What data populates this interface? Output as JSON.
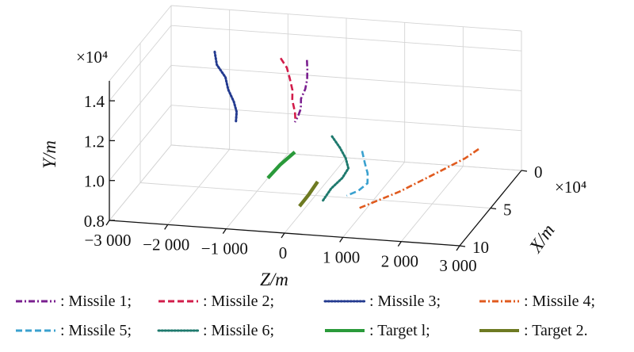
{
  "chart_data": {
    "type": "line3d",
    "axes": {
      "x": {
        "label": "X/m",
        "ticks": [
          "0",
          "5",
          "10"
        ],
        "tick_values": [
          0,
          5,
          10
        ],
        "multiplier": "×10⁴",
        "range": [
          0,
          10
        ]
      },
      "y": {
        "label": "Y/m",
        "ticks": [
          "0.8",
          "1.0",
          "1.2",
          "1.4"
        ],
        "tick_values": [
          0.8,
          1.0,
          1.2,
          1.4
        ],
        "multiplier": "×10⁴",
        "range": [
          0.8,
          1.5
        ]
      },
      "z": {
        "label": "Z/m",
        "ticks": [
          "−3 000",
          "−2 000",
          "−1 000",
          "0",
          "1 000",
          "2 000",
          "3 000"
        ],
        "tick_values": [
          -3000,
          -2000,
          -1000,
          0,
          1000,
          2000,
          3000
        ],
        "range": [
          -3000,
          3000
        ]
      }
    },
    "grid": true,
    "legend_position": "bottom",
    "series": [
      {
        "name": ": Missile 1;",
        "color": "#7a1f8f",
        "style": "dashdot",
        "points": [
          [
            2.6,
            -400,
            1.38
          ],
          [
            3.0,
            -350,
            1.35
          ],
          [
            3.5,
            -300,
            1.32
          ],
          [
            4.0,
            -280,
            1.29
          ],
          [
            4.5,
            -300,
            1.26
          ],
          [
            5.0,
            -250,
            1.23
          ],
          [
            5.3,
            -270,
            1.2
          ],
          [
            5.5,
            -300,
            1.18
          ]
        ]
      },
      {
        "name": ": Missile 2;",
        "color": "#d21c4a",
        "style": "dash",
        "points": [
          [
            2.6,
            -850,
            1.38
          ],
          [
            3.0,
            -700,
            1.35
          ],
          [
            3.5,
            -600,
            1.32
          ],
          [
            4.0,
            -500,
            1.28
          ],
          [
            4.5,
            -450,
            1.25
          ],
          [
            5.0,
            -350,
            1.21
          ],
          [
            5.4,
            -300,
            1.18
          ]
        ]
      },
      {
        "name": ": Missile 3;",
        "color": "#233a8f",
        "style": "dot",
        "points": [
          [
            2.4,
            -2000,
            1.38
          ],
          [
            3.0,
            -1900,
            1.34
          ],
          [
            3.5,
            -1700,
            1.3
          ],
          [
            4.0,
            -1600,
            1.26
          ],
          [
            4.5,
            -1450,
            1.22
          ],
          [
            5.0,
            -1350,
            1.19
          ],
          [
            5.6,
            -1300,
            1.16
          ]
        ]
      },
      {
        "name": ": Missile 4;",
        "color": "#e05a1e",
        "style": "dashdot",
        "points": [
          [
            2.2,
            2500,
            0.98
          ],
          [
            3.0,
            2350,
            0.96
          ],
          [
            4.0,
            2050,
            0.93
          ],
          [
            5.0,
            1800,
            0.91
          ],
          [
            6.0,
            1550,
            0.89
          ],
          [
            7.0,
            1300,
            0.88
          ],
          [
            8.0,
            1050,
            0.87
          ]
        ]
      },
      {
        "name": ": Missile 5;",
        "color": "#3aa1cf",
        "style": "dash",
        "points": [
          [
            5.0,
            800,
            1.04
          ],
          [
            5.5,
            900,
            1.0
          ],
          [
            6.0,
            1000,
            0.97
          ],
          [
            6.5,
            1050,
            0.94
          ],
          [
            7.0,
            950,
            0.92
          ],
          [
            7.5,
            800,
            0.91
          ]
        ]
      },
      {
        "name": ": Missile 6;",
        "color": "#1f7a6e",
        "style": "dot",
        "points": [
          [
            4.2,
            200,
            1.07
          ],
          [
            4.8,
            400,
            1.04
          ],
          [
            5.3,
            550,
            1.01
          ],
          [
            5.8,
            650,
            0.98
          ],
          [
            6.3,
            600,
            0.95
          ],
          [
            7.0,
            480,
            0.92
          ],
          [
            8.0,
            430,
            0.89
          ]
        ]
      },
      {
        "name": ": Target l;",
        "color": "#2a9a3a",
        "style": "solid",
        "points": [
          [
            5.5,
            -300,
            1.03
          ],
          [
            6.5,
            -450,
            1.0
          ],
          [
            7.5,
            -550,
            0.97
          ]
        ]
      },
      {
        "name": ": Target 2.",
        "color": "#6e7a22",
        "style": "solid",
        "points": [
          [
            7.0,
            250,
            0.95
          ],
          [
            8.0,
            200,
            0.92
          ],
          [
            9.0,
            150,
            0.9
          ]
        ]
      }
    ]
  }
}
